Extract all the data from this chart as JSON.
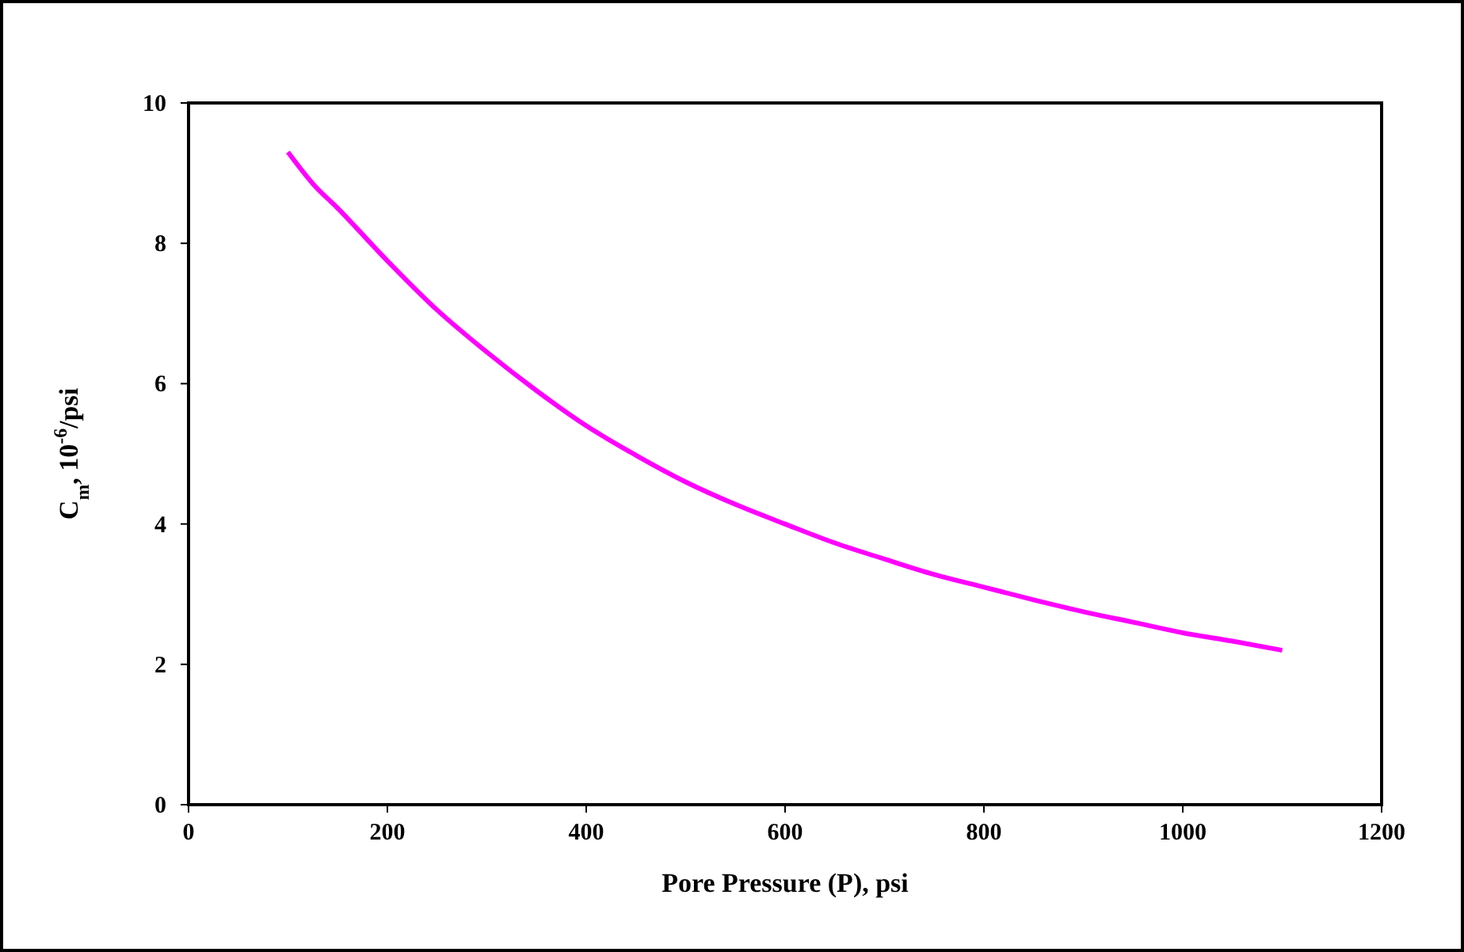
{
  "chart_data": {
    "type": "line",
    "xlabel": "Pore Pressure (P), psi",
    "ylabel": "C$_{m}$, 10$^{-6}$/psi",
    "x": [
      100,
      125,
      150,
      200,
      250,
      300,
      350,
      400,
      450,
      500,
      550,
      600,
      650,
      700,
      750,
      800,
      850,
      900,
      950,
      1000,
      1050,
      1100
    ],
    "series": [
      {
        "color": "#ff00ff",
        "values": [
          9.3,
          8.85,
          8.5,
          7.75,
          7.05,
          6.45,
          5.9,
          5.4,
          4.98,
          4.6,
          4.28,
          4.0,
          3.73,
          3.5,
          3.28,
          3.1,
          2.92,
          2.75,
          2.6,
          2.45,
          2.33,
          2.2
        ]
      }
    ],
    "xlim": [
      0,
      1200
    ],
    "ylim": [
      0,
      10
    ],
    "xticks": [
      0,
      200,
      400,
      600,
      800,
      1000,
      1200
    ],
    "yticks": [
      0,
      2,
      4,
      6,
      8,
      10
    ],
    "grid": false,
    "marker": "none",
    "line_style": "solid"
  }
}
